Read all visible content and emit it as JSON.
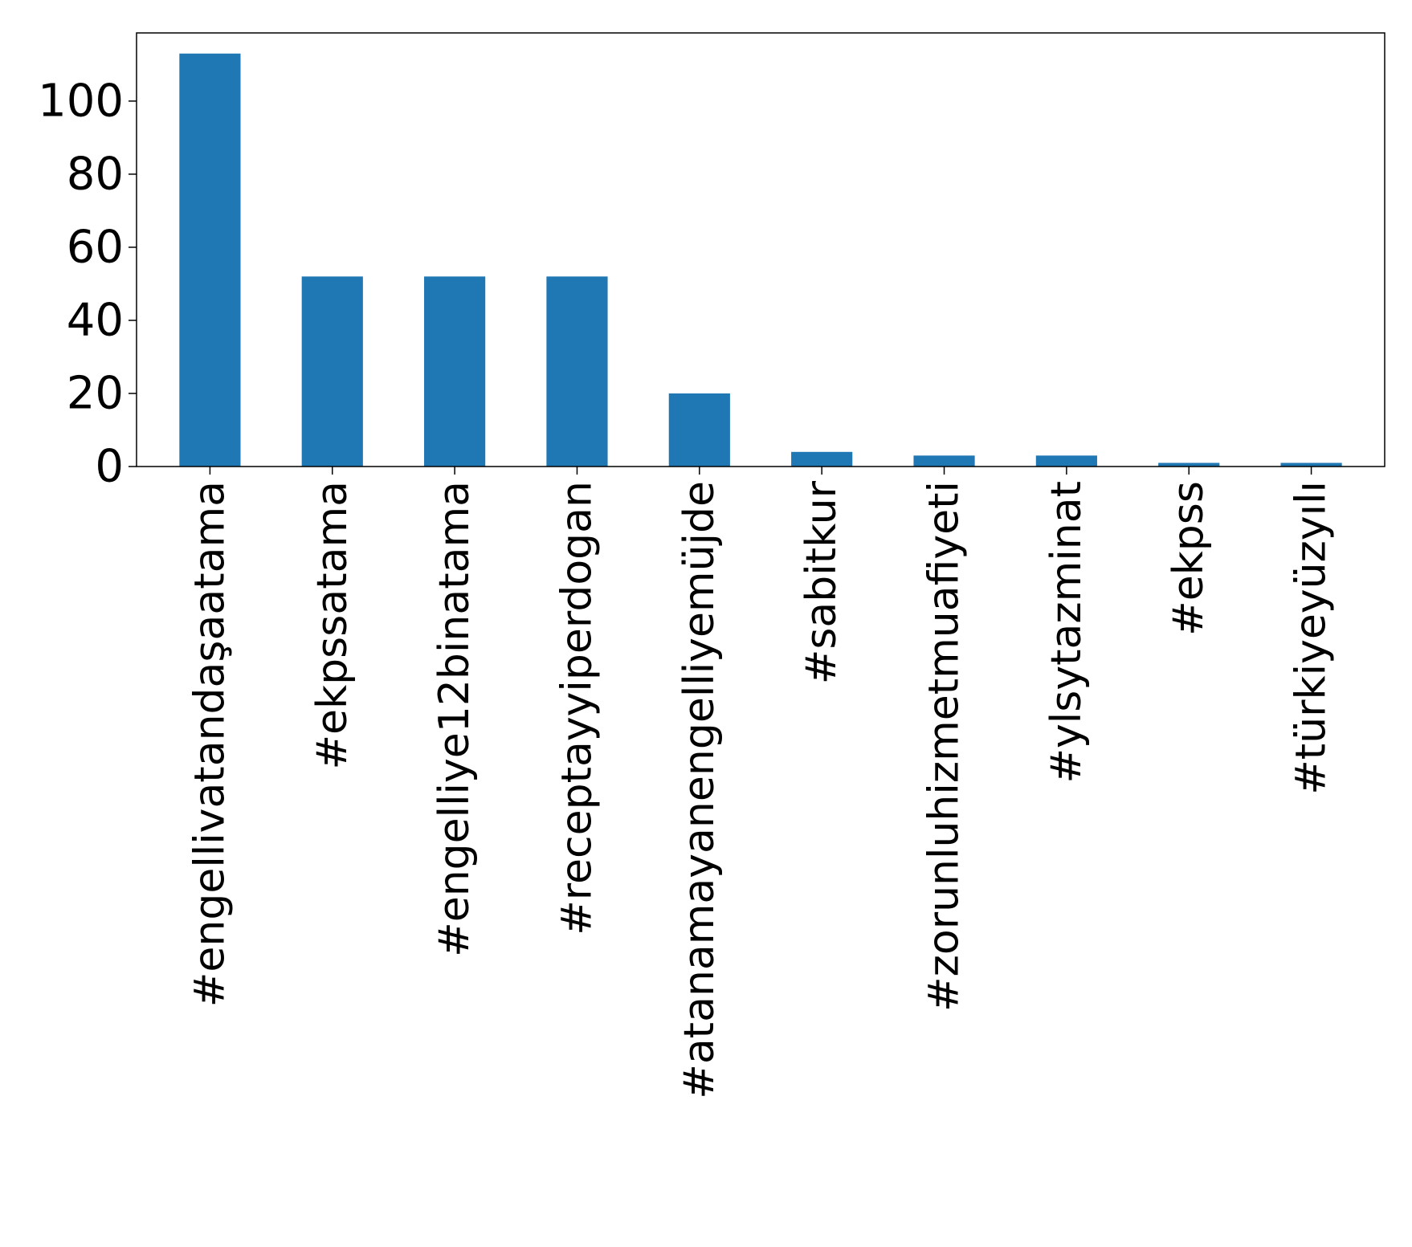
{
  "chart_data": {
    "type": "bar",
    "categories": [
      "#engellivatandaşaatama",
      "#ekpssatama",
      "#engelliye12binatama",
      "#receptayyiperdogan",
      "#atanamayanengelliyemüjde",
      "#sabitkur",
      "#zorunluhizmetmuafiyeti",
      "#ylsytazminat",
      "#ekpss",
      "#türkiyeyüzyılı"
    ],
    "values": [
      113,
      52,
      52,
      52,
      20,
      4,
      3,
      3,
      1,
      1
    ],
    "title": "",
    "xlabel": "",
    "ylabel": "",
    "ylim": [
      0,
      118.65
    ],
    "yticks": [
      0,
      20,
      40,
      60,
      80,
      100
    ],
    "grid": false,
    "legend": "none",
    "colors": {
      "bar": "#1f77b4",
      "axes": "#000000",
      "background": "#ffffff"
    }
  }
}
